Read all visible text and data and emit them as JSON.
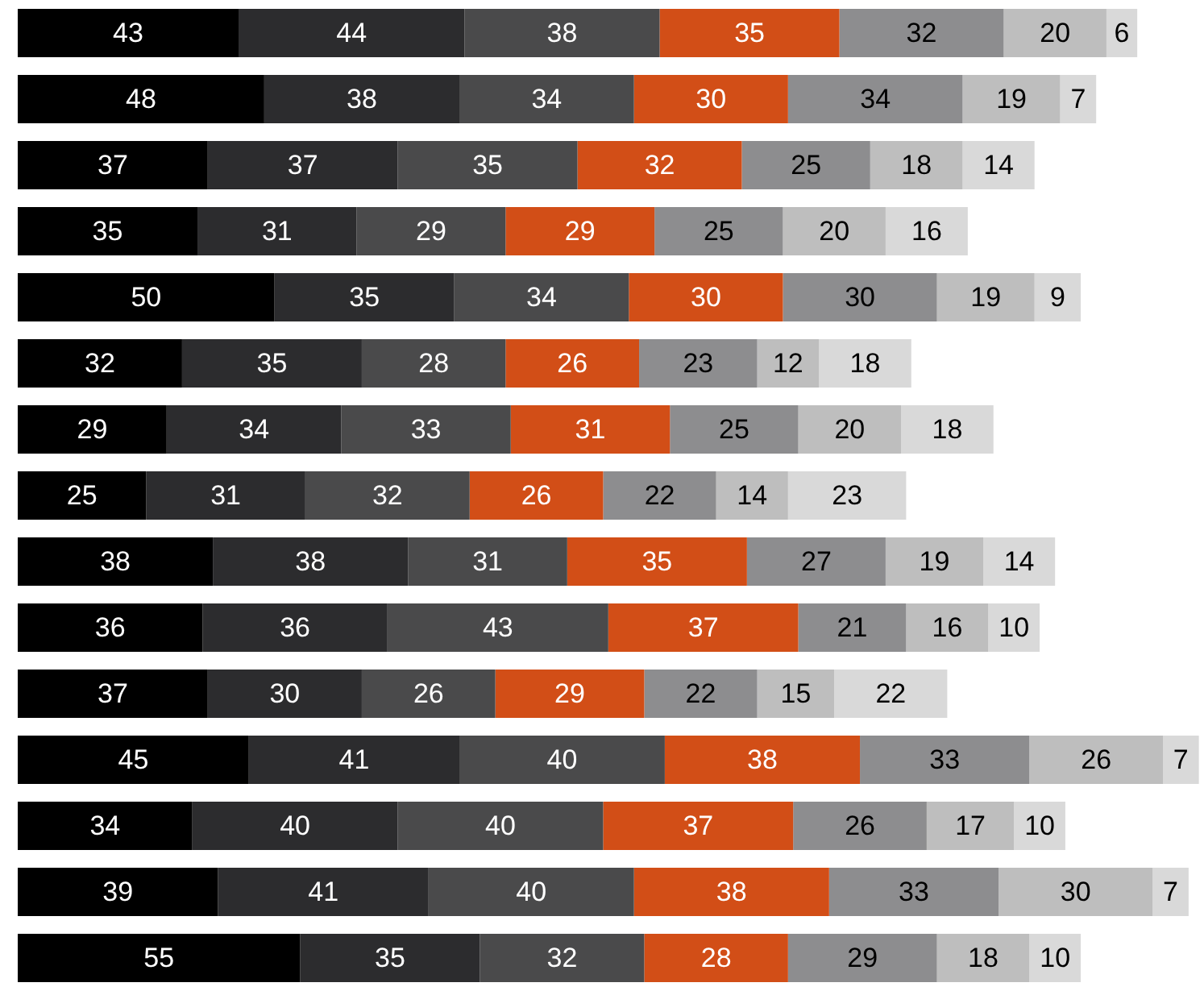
{
  "chart_data": {
    "type": "bar",
    "orientation": "horizontal",
    "stacked": true,
    "data_labels": true,
    "grid": false,
    "legend": false,
    "tick_labels": false,
    "xlim": [
      0,
      231
    ],
    "categories": [
      null,
      null,
      null,
      null,
      null,
      null,
      null,
      null,
      null,
      null,
      null,
      null,
      null,
      null,
      null
    ],
    "series": [
      {
        "color": "#000000",
        "values": [
          43,
          48,
          37,
          35,
          50,
          32,
          29,
          25,
          38,
          36,
          37,
          45,
          34,
          39,
          55
        ]
      },
      {
        "color": "#2c2c2e",
        "values": [
          44,
          38,
          37,
          31,
          35,
          35,
          34,
          31,
          38,
          36,
          30,
          41,
          40,
          41,
          35
        ]
      },
      {
        "color": "#4a4a4b",
        "values": [
          38,
          34,
          35,
          29,
          34,
          28,
          33,
          32,
          31,
          43,
          26,
          40,
          40,
          40,
          32
        ]
      },
      {
        "color": "#d24e17",
        "values": [
          35,
          30,
          32,
          29,
          30,
          26,
          31,
          26,
          35,
          37,
          29,
          38,
          37,
          38,
          28
        ]
      },
      {
        "color": "#8d8d8f",
        "values": [
          32,
          34,
          25,
          25,
          30,
          23,
          25,
          22,
          27,
          21,
          22,
          33,
          26,
          33,
          29
        ]
      },
      {
        "color": "#bebebe",
        "values": [
          20,
          19,
          18,
          20,
          19,
          12,
          20,
          14,
          19,
          16,
          15,
          26,
          17,
          30,
          18
        ]
      },
      {
        "color": "#d9d9d9",
        "values": [
          6,
          7,
          14,
          16,
          9,
          18,
          18,
          23,
          14,
          10,
          22,
          7,
          10,
          7,
          10
        ]
      }
    ]
  }
}
